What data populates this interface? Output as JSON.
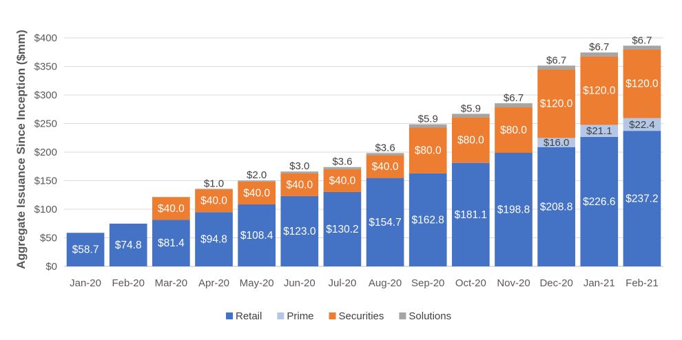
{
  "chart_data": {
    "type": "bar",
    "stacked": true,
    "title": "",
    "xlabel": "",
    "ylabel": "Aggregate Issuance Since Inception ($mm)",
    "ylim": [
      0,
      400
    ],
    "ytick_step": 50,
    "ytick_labels": [
      "$0",
      "$50",
      "$100",
      "$150",
      "$200",
      "$250",
      "$300",
      "$350",
      "$400"
    ],
    "grid": true,
    "legend_position": "bottom",
    "categories": [
      "Jan-20",
      "Feb-20",
      "Mar-20",
      "Apr-20",
      "May-20",
      "Jun-20",
      "Jul-20",
      "Aug-20",
      "Sep-20",
      "Oct-20",
      "Nov-20",
      "Dec-20",
      "Jan-21",
      "Feb-21"
    ],
    "series": [
      {
        "name": "Retail",
        "color": "#4472C4",
        "values": [
          58.7,
          74.8,
          81.4,
          94.8,
          108.4,
          123.0,
          130.2,
          154.7,
          162.8,
          181.1,
          198.8,
          208.8,
          226.6,
          237.2
        ],
        "labels": [
          "$58.7",
          "$74.8",
          "$81.4",
          "$94.8",
          "$108.4",
          "$123.0",
          "$130.2",
          "$154.7",
          "$162.8",
          "$181.1",
          "$198.8",
          "$208.8",
          "$226.6",
          "$237.2"
        ]
      },
      {
        "name": "Prime",
        "color": "#B4C7E7",
        "values": [
          0,
          0,
          0,
          0,
          0,
          0,
          0,
          0,
          0,
          0,
          0,
          16.0,
          21.1,
          22.4
        ],
        "labels": [
          "",
          "",
          "",
          "",
          "",
          "",
          "",
          "",
          "",
          "",
          "",
          "$16.0",
          "$21.1",
          "$22.4"
        ]
      },
      {
        "name": "Securities",
        "color": "#ED7D31",
        "values": [
          0,
          0,
          40.0,
          40.0,
          40.0,
          40.0,
          40.0,
          40.0,
          80.0,
          80.0,
          80.0,
          120.0,
          120.0,
          120.0
        ],
        "labels": [
          "",
          "",
          "$40.0",
          "$40.0",
          "$40.0",
          "$40.0",
          "$40.0",
          "$40.0",
          "$80.0",
          "$80.0",
          "$80.0",
          "$120.0",
          "$120.0",
          "$120.0"
        ]
      },
      {
        "name": "Solutions",
        "color": "#A5A5A5",
        "values": [
          0,
          0,
          0,
          1.0,
          2.0,
          3.0,
          3.6,
          3.6,
          5.9,
          5.9,
          6.7,
          6.7,
          6.7,
          6.7
        ],
        "labels": [
          "",
          "",
          "",
          "$1.0",
          "$2.0",
          "$3.0",
          "$3.6",
          "$3.6",
          "$5.9",
          "$5.9",
          "$6.7",
          "$6.7",
          "$6.7",
          "$6.7"
        ]
      }
    ]
  }
}
